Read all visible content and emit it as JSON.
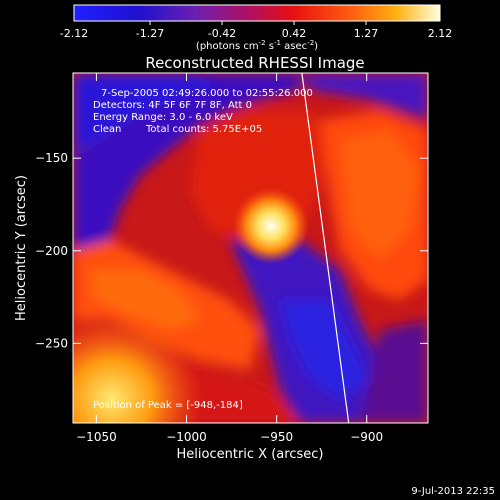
{
  "colorbar": {
    "ticks": [
      "-2.12",
      "-1.27",
      "-0.42",
      "0.42",
      "1.27",
      "2.12"
    ],
    "units_prefix": "(photons cm",
    "units_exp1": "-2",
    "units_mid": " s",
    "units_exp2": "-1",
    "units_mid2": " asec",
    "units_exp3": "-2",
    "units_suffix": ")"
  },
  "chart_data": {
    "type": "heatmap",
    "title": "Reconstructed RHESSI Image",
    "xlabel": "Heliocentric X (arcsec)",
    "ylabel": "Heliocentric Y (arcsec)",
    "x_ticks": [
      "−1050",
      "−1000",
      "−950",
      "−900"
    ],
    "x_tick_values": [
      -1050,
      -1000,
      -950,
      -900
    ],
    "y_ticks": [
      "−150",
      "−200",
      "−250"
    ],
    "y_tick_values": [
      -150,
      -200,
      -250
    ],
    "xlim": [
      -1063,
      -866
    ],
    "ylim": [
      -293,
      -104
    ],
    "colormap": "rainbow-like (blue to white)",
    "peak": {
      "x": -948,
      "y": -184
    },
    "limb_line_x_at_top": -936,
    "limb_line_x_at_bottom": -910
  },
  "annotations": {
    "line1": "7-Sep-2005 02:49:26.000 to 02:55:26.000",
    "line2": "Detectors: 4F 5F 6F 7F 8F, Att 0",
    "line3": "Energy Range: 3.0 - 6.0 keV",
    "line4_left": "Clean",
    "line4_right": "Total counts: 5.75E+05",
    "peak_label": "Position of Peak = [-948,-184]"
  },
  "footer": {
    "date": "9-Jul-2013 22:35"
  }
}
